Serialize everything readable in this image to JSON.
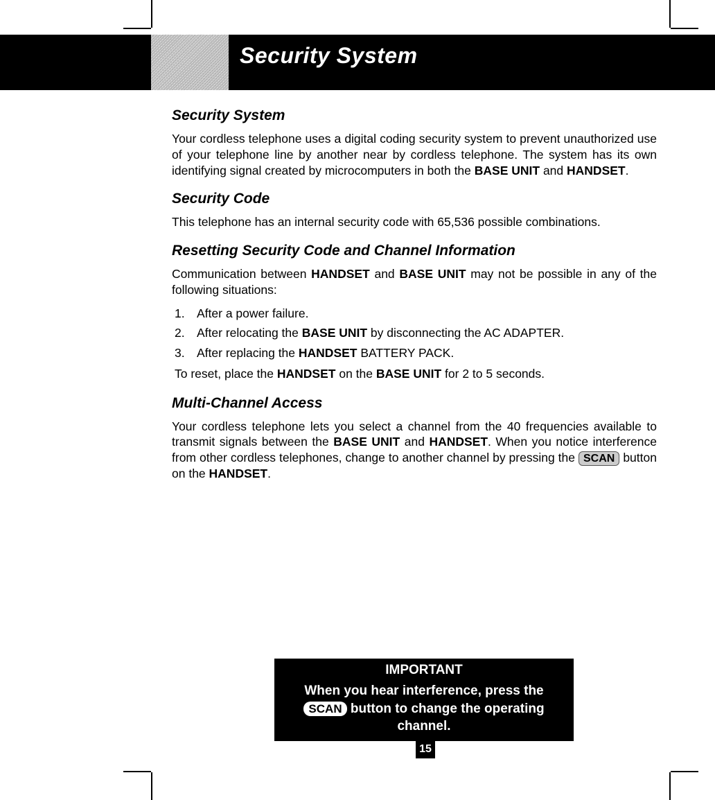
{
  "header": {
    "title": "Security System"
  },
  "sections": {
    "s1": {
      "heading": "Security System",
      "p_a": "Your cordless telephone uses a digital coding security system to prevent unauthorized use of your telephone line by another near by cordless telephone. The system has its own identifying signal created by microcomputers in both the ",
      "p_b": "BASE UNIT",
      "p_c": " and ",
      "p_d": "HANDSET",
      "p_e": "."
    },
    "s2": {
      "heading": "Security Code",
      "p": "This telephone has an internal security code with 65,536 possible combinations."
    },
    "s3": {
      "heading": "Resetting Security Code and Channel Information",
      "intro_a": "Communication between ",
      "intro_b": "HANDSET",
      "intro_c": " and ",
      "intro_d": "BASE UNIT",
      "intro_e": " may not be possible in any of the following situations:",
      "li1_num": "1.",
      "li1": "After a power failure.",
      "li2_num": "2.",
      "li2_a": "After relocating the ",
      "li2_b": "BASE UNIT",
      "li2_c": " by disconnecting the AC ADAPTER.",
      "li3_num": "3.",
      "li3_a": "After replacing the ",
      "li3_b": "HANDSET",
      "li3_c": " BATTERY PACK.",
      "reset_a": "To reset, place the ",
      "reset_b": "HANDSET",
      "reset_c": " on the ",
      "reset_d": "BASE UNIT",
      "reset_e": " for 2 to 5 seconds."
    },
    "s4": {
      "heading": "Multi-Channel Access",
      "p_a": "Your cordless telephone lets you select a channel from the 40 frequencies available to transmit signals between the ",
      "p_b": "BASE UNIT",
      "p_c": " and ",
      "p_d": "HANDSET",
      "p_e": ". When you notice interference from other cordless telephones, change to another channel by pressing the ",
      "scan": "SCAN",
      "p_f": " button on the ",
      "p_g": "HANDSET",
      "p_h": "."
    }
  },
  "important": {
    "title": "IMPORTANT",
    "line_a": "When you hear interference, press the ",
    "scan": "SCAN",
    "line_b": " button to change the operating channel."
  },
  "page_number": "15",
  "colors": {
    "black": "#000000",
    "white": "#ffffff",
    "chip_bg": "#cccccc",
    "chip_border": "#555555"
  }
}
